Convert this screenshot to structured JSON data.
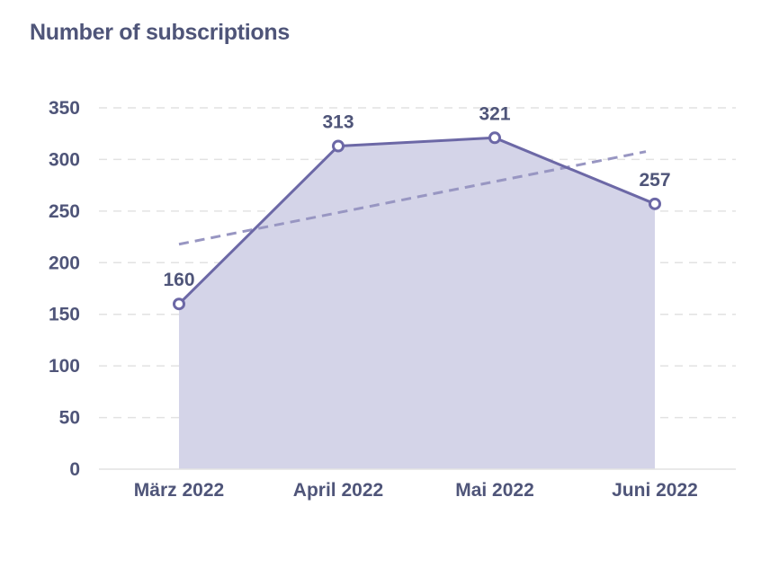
{
  "chart_data": {
    "type": "area",
    "title": "Number of subscriptions",
    "categories": [
      "März 2022",
      "April 2022",
      "Mai 2022",
      "Juni 2022"
    ],
    "series": [
      {
        "values": [
          160,
          313,
          321,
          257
        ],
        "data_labels": [
          "160",
          "313",
          "321",
          "257"
        ]
      }
    ],
    "trendline": {
      "style": "dashed",
      "type": "linear"
    },
    "y_ticks": [
      0,
      50,
      100,
      150,
      200,
      250,
      300,
      350
    ],
    "ylim": [
      0,
      350
    ],
    "grid": true,
    "legend": "none",
    "colors": {
      "line": "#6c68a6",
      "fill": "#d4d4e8",
      "trend": "#9896c2",
      "text": "#4f5579",
      "grid": "#e2e2e2"
    }
  }
}
